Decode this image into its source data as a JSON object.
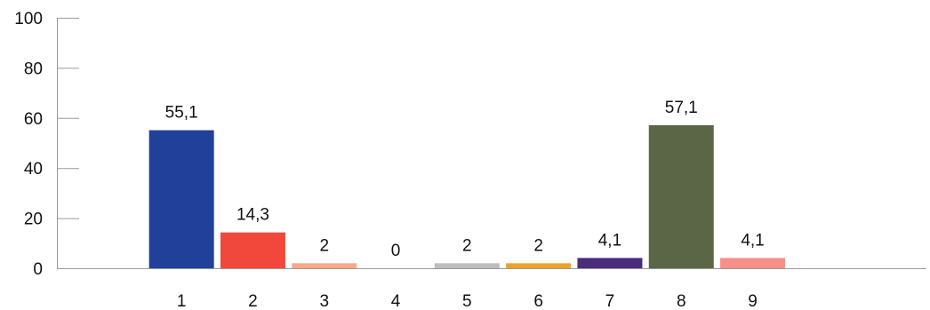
{
  "chart_data": {
    "type": "bar",
    "title": "",
    "xlabel": "",
    "ylabel": "",
    "categories": [
      "1",
      "2",
      "3",
      "4",
      "5",
      "6",
      "7",
      "8",
      "9"
    ],
    "values": [
      55.1,
      14.3,
      2,
      0,
      2,
      2,
      4.1,
      57.1,
      4.1
    ],
    "value_labels": [
      "55,1",
      "14,3",
      "2",
      "0",
      "2",
      "2",
      "4,1",
      "57,1",
      "4,1"
    ],
    "colors": [
      "#21409a",
      "#f0493b",
      "#f9a88a",
      "#bdbdbd",
      "#bdbdbd",
      "#eca12b",
      "#4a2c7a",
      "#5a6645",
      "#f59089"
    ],
    "ylim": [
      0,
      100
    ],
    "yticks": [
      0,
      20,
      40,
      60,
      80,
      100
    ],
    "grid": false,
    "legend": "none"
  }
}
